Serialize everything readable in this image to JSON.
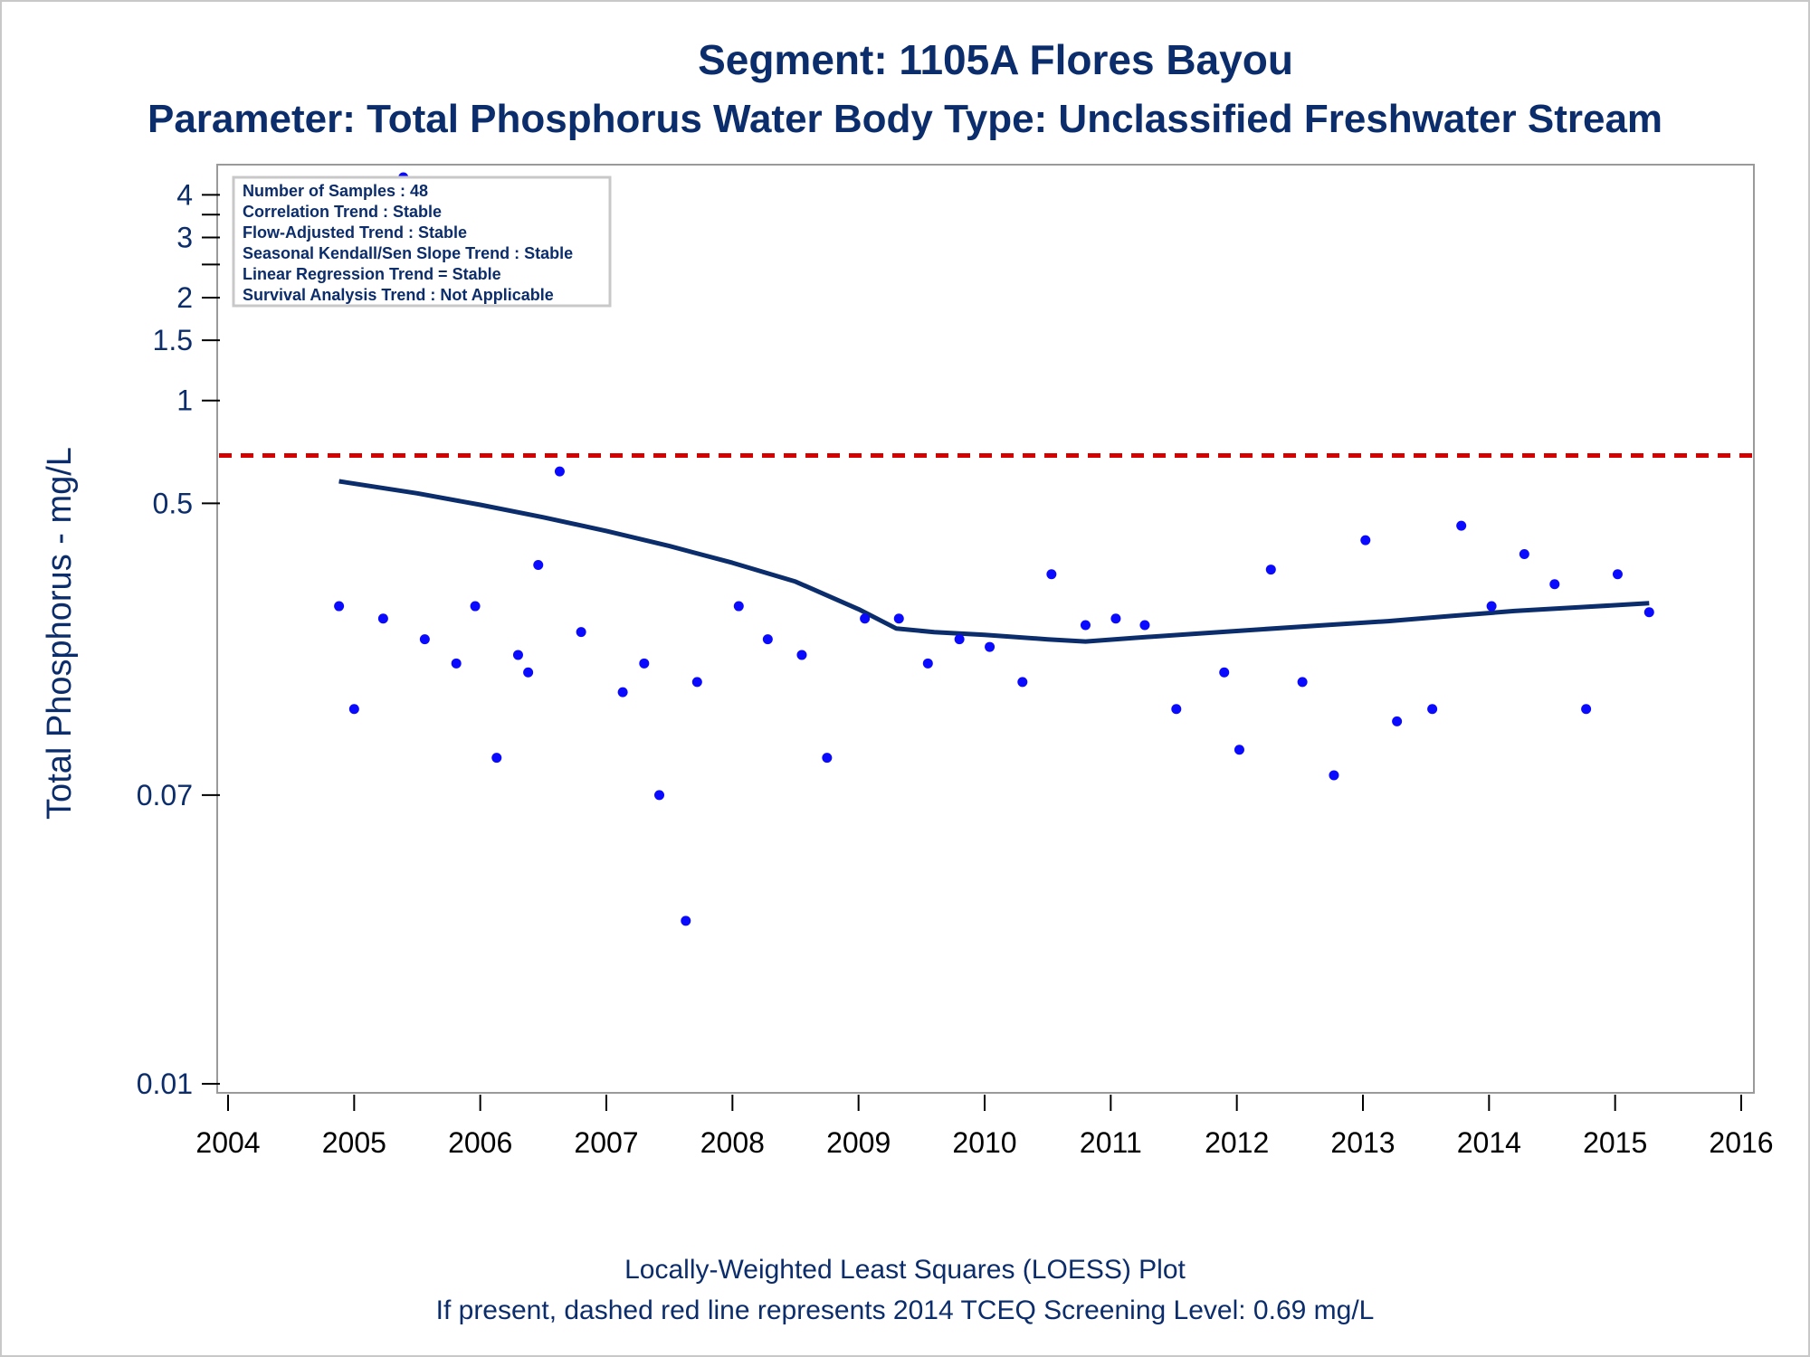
{
  "chart_data": {
    "type": "scatter",
    "title": "Segment: 1105A  Flores Bayou",
    "subtitle": "Parameter: Total Phosphorus   Water Body Type: Unclassified Freshwater Stream",
    "xlabel": "",
    "ylabel": "Total Phosphorus - mg/L",
    "y_scale": "log",
    "xlim": [
      2004,
      2016
    ],
    "ylim": [
      0.01,
      4.5
    ],
    "x_ticks": [
      {
        "value": 2004,
        "label": "2004"
      },
      {
        "value": 2005,
        "label": "2005"
      },
      {
        "value": 2006,
        "label": "2006"
      },
      {
        "value": 2007,
        "label": "2007"
      },
      {
        "value": 2008,
        "label": "2008"
      },
      {
        "value": 2009,
        "label": "2009"
      },
      {
        "value": 2010,
        "label": "2010"
      },
      {
        "value": 2011,
        "label": "2011"
      },
      {
        "value": 2012,
        "label": "2012"
      },
      {
        "value": 2013,
        "label": "2013"
      },
      {
        "value": 2014,
        "label": "2014"
      },
      {
        "value": 2015,
        "label": "2015"
      },
      {
        "value": 2016,
        "label": "2016"
      }
    ],
    "y_ticks": [
      {
        "value": 4,
        "label": "4"
      },
      {
        "value": 3.5,
        "label": ""
      },
      {
        "value": 3,
        "label": "3"
      },
      {
        "value": 2.5,
        "label": ""
      },
      {
        "value": 2,
        "label": "2"
      },
      {
        "value": 1.5,
        "label": "1.5"
      },
      {
        "value": 1,
        "label": "1"
      },
      {
        "value": 0.5,
        "label": "0.5"
      },
      {
        "value": 0.07,
        "label": "0.07"
      },
      {
        "value": 0.01,
        "label": "0.01"
      }
    ],
    "grid": false,
    "series": [
      {
        "type": "scatter",
        "color": "#0a0aff",
        "points": [
          {
            "x": 2004.88,
            "y": 0.25
          },
          {
            "x": 2005.0,
            "y": 0.125
          },
          {
            "x": 2005.23,
            "y": 0.23
          },
          {
            "x": 2005.39,
            "y": 4.5
          },
          {
            "x": 2005.56,
            "y": 0.2
          },
          {
            "x": 2005.81,
            "y": 0.17
          },
          {
            "x": 2005.96,
            "y": 0.25
          },
          {
            "x": 2006.13,
            "y": 0.09
          },
          {
            "x": 2006.3,
            "y": 0.18
          },
          {
            "x": 2006.38,
            "y": 0.16
          },
          {
            "x": 2006.46,
            "y": 0.33
          },
          {
            "x": 2006.63,
            "y": 0.62
          },
          {
            "x": 2006.8,
            "y": 0.21
          },
          {
            "x": 2007.13,
            "y": 0.14
          },
          {
            "x": 2007.3,
            "y": 0.17
          },
          {
            "x": 2007.42,
            "y": 0.07
          },
          {
            "x": 2007.63,
            "y": 0.03
          },
          {
            "x": 2007.72,
            "y": 0.15
          },
          {
            "x": 2008.05,
            "y": 0.25
          },
          {
            "x": 2008.28,
            "y": 0.2
          },
          {
            "x": 2008.55,
            "y": 0.18
          },
          {
            "x": 2008.75,
            "y": 0.09
          },
          {
            "x": 2009.05,
            "y": 0.23
          },
          {
            "x": 2009.32,
            "y": 0.23
          },
          {
            "x": 2009.55,
            "y": 0.17
          },
          {
            "x": 2009.8,
            "y": 0.2
          },
          {
            "x": 2010.04,
            "y": 0.19
          },
          {
            "x": 2010.3,
            "y": 0.15
          },
          {
            "x": 2010.53,
            "y": 0.31
          },
          {
            "x": 2010.8,
            "y": 0.22
          },
          {
            "x": 2011.04,
            "y": 0.23
          },
          {
            "x": 2011.27,
            "y": 0.22
          },
          {
            "x": 2011.52,
            "y": 0.125
          },
          {
            "x": 2011.9,
            "y": 0.16
          },
          {
            "x": 2012.02,
            "y": 0.095
          },
          {
            "x": 2012.27,
            "y": 0.32
          },
          {
            "x": 2012.52,
            "y": 0.15
          },
          {
            "x": 2012.77,
            "y": 0.08
          },
          {
            "x": 2013.02,
            "y": 0.39
          },
          {
            "x": 2013.27,
            "y": 0.115
          },
          {
            "x": 2013.55,
            "y": 0.125
          },
          {
            "x": 2013.78,
            "y": 0.43
          },
          {
            "x": 2014.02,
            "y": 0.25
          },
          {
            "x": 2014.28,
            "y": 0.355
          },
          {
            "x": 2014.52,
            "y": 0.29
          },
          {
            "x": 2014.77,
            "y": 0.125
          },
          {
            "x": 2015.02,
            "y": 0.31
          },
          {
            "x": 2015.27,
            "y": 0.24
          }
        ]
      },
      {
        "type": "line",
        "color": "#0c2d6b",
        "points": [
          {
            "x": 2004.88,
            "y": 0.58
          },
          {
            "x": 2005.5,
            "y": 0.535
          },
          {
            "x": 2006.0,
            "y": 0.495
          },
          {
            "x": 2006.5,
            "y": 0.455
          },
          {
            "x": 2007.0,
            "y": 0.415
          },
          {
            "x": 2007.5,
            "y": 0.375
          },
          {
            "x": 2008.0,
            "y": 0.335
          },
          {
            "x": 2008.5,
            "y": 0.295
          },
          {
            "x": 2009.0,
            "y": 0.245
          },
          {
            "x": 2009.3,
            "y": 0.215
          },
          {
            "x": 2009.6,
            "y": 0.21
          },
          {
            "x": 2010.0,
            "y": 0.206
          },
          {
            "x": 2010.5,
            "y": 0.2
          },
          {
            "x": 2010.8,
            "y": 0.197
          },
          {
            "x": 2011.2,
            "y": 0.202
          },
          {
            "x": 2011.7,
            "y": 0.208
          },
          {
            "x": 2012.2,
            "y": 0.214
          },
          {
            "x": 2012.7,
            "y": 0.22
          },
          {
            "x": 2013.2,
            "y": 0.226
          },
          {
            "x": 2013.7,
            "y": 0.234
          },
          {
            "x": 2014.2,
            "y": 0.242
          },
          {
            "x": 2014.7,
            "y": 0.248
          },
          {
            "x": 2015.27,
            "y": 0.255
          }
        ]
      }
    ],
    "reference_line": {
      "y": 0.69,
      "color": "#d40000",
      "style": "dashed"
    },
    "legend_position": "top-left",
    "info_box": [
      "Number of Samples : 48",
      "Correlation Trend : Stable",
      "Flow-Adjusted Trend : Stable",
      "Seasonal Kendall/Sen Slope Trend : Stable",
      "Linear Regression Trend = Stable",
      "Survival Analysis Trend : Not Applicable"
    ],
    "footnotes": [
      "Locally-Weighted Least Squares (LOESS) Plot",
      "If present, dashed red line represents 2014 TCEQ Screening Level: 0.69 mg/L"
    ]
  }
}
